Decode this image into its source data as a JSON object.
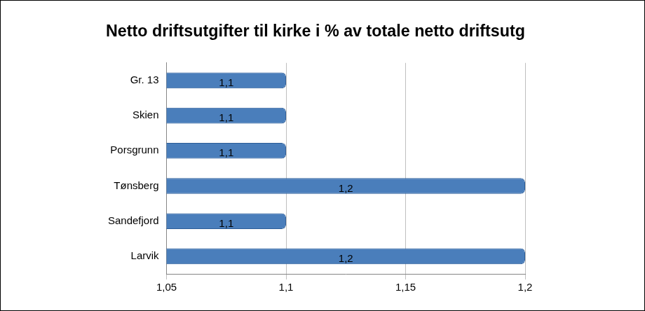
{
  "chart_data": {
    "type": "bar",
    "title": "Netto driftsutgifter til kirke i % av totale netto driftsutg",
    "orientation": "horizontal",
    "categories": [
      "Gr. 13",
      "Skien",
      "Porsgrunn",
      "Tønsberg",
      "Sandefjord",
      "Larvik"
    ],
    "values": [
      1.1,
      1.1,
      1.1,
      1.2,
      1.1,
      1.2
    ],
    "value_labels": [
      "1,1",
      "1,1",
      "1,1",
      "1,2",
      "1,1",
      "1,2"
    ],
    "data_labels": true,
    "color": "#4a7ebb",
    "xlim": [
      1.05,
      1.2
    ],
    "xticks": [
      {
        "value": 1.05,
        "label": "1,05"
      },
      {
        "value": 1.1,
        "label": "1,1"
      },
      {
        "value": 1.15,
        "label": "1,15"
      },
      {
        "value": 1.2,
        "label": "1,2"
      }
    ],
    "grid": true
  }
}
